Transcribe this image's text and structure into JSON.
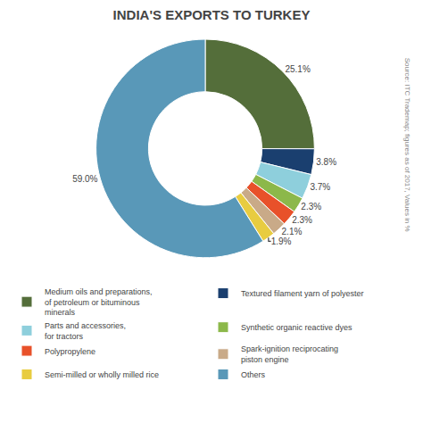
{
  "chart_data": {
    "type": "donut",
    "title": "INDIA'S EXPORTS TO TURKEY",
    "categories": [
      "Medium oils and preparations,\nof petroleum or bituminous\nminerals",
      "Textured filament yarn of polyester",
      "Parts and accessories,\nfor tractors",
      "Synthetic organic reactive dyes",
      "Polypropylene",
      "Spark-ignition reciprocating\npiston engine",
      "Semi-milled or wholly milled rice",
      "Others"
    ],
    "values": [
      25.1,
      3.8,
      3.7,
      2.3,
      2.3,
      2.1,
      1.9,
      59.0
    ],
    "value_labels": [
      "25.1%",
      "3.8%",
      "3.7%",
      "2.3%",
      "2.3%",
      "2.1%",
      "1.9%",
      "59.0%"
    ],
    "colors": [
      "#546e3a",
      "#1a3f6f",
      "#8ecfdc",
      "#8cb84a",
      "#e8512a",
      "#c9aa88",
      "#e8cc40",
      "#5998b8"
    ],
    "data_labels": true,
    "legend": "bottom",
    "annotations": [
      "Source: ITC Trademap; figures as of 2017, Values in %"
    ]
  }
}
